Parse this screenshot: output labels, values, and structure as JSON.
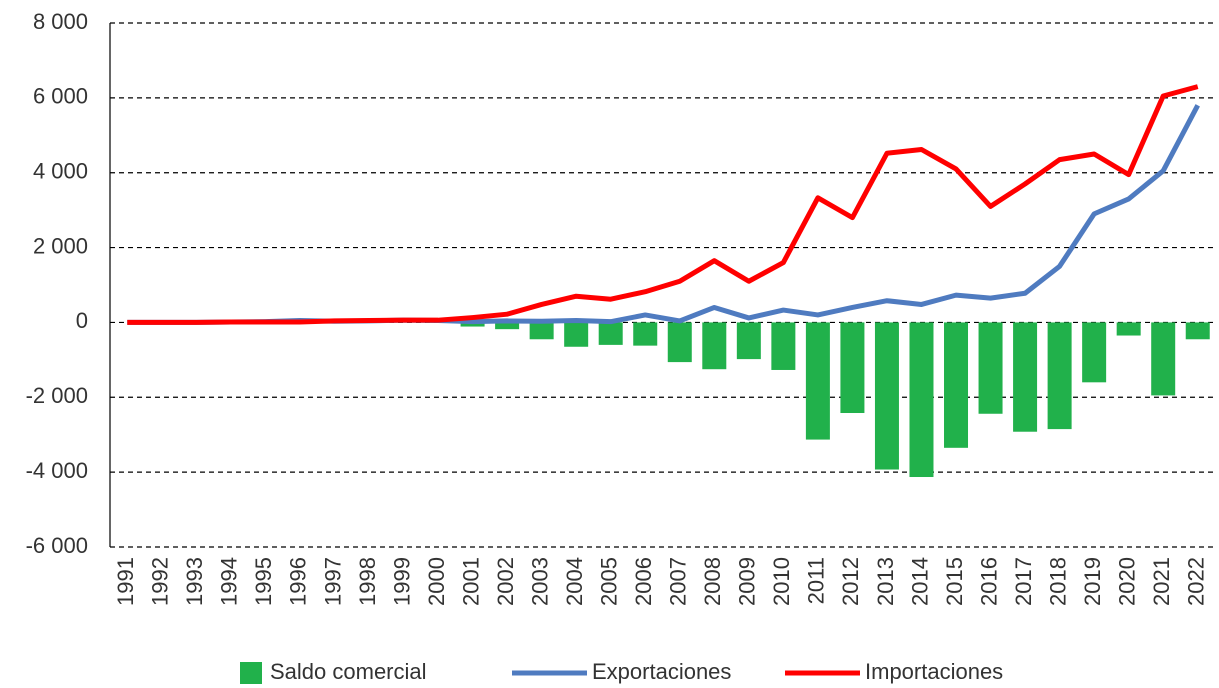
{
  "chart_data": {
    "type": "bar_line",
    "categories": [
      "1991",
      "1992",
      "1993",
      "1994",
      "1995",
      "1996",
      "1997",
      "1998",
      "1999",
      "2000",
      "2001",
      "2002",
      "2003",
      "2004",
      "2005",
      "2006",
      "2007",
      "2008",
      "2009",
      "2010",
      "2011",
      "2012",
      "2013",
      "2014",
      "2015",
      "2016",
      "2017",
      "2018",
      "2019",
      "2020",
      "2021",
      "2022"
    ],
    "series": [
      {
        "name": "Saldo comercial",
        "type": "bar",
        "color": "#21b14b",
        "values": [
          0,
          0,
          0,
          -10,
          -10,
          40,
          -10,
          -10,
          0,
          -10,
          -110,
          -180,
          -450,
          -650,
          -600,
          -620,
          -1060,
          -1250,
          -980,
          -1270,
          -3130,
          -2420,
          -3930,
          -4130,
          -3350,
          -2440,
          -2920,
          -2850,
          -1600,
          -350,
          -1950,
          -450
        ]
      },
      {
        "name": "Exportaciones",
        "type": "line",
        "color": "#4f7bc0",
        "values": [
          0,
          0,
          0,
          10,
          20,
          50,
          30,
          40,
          60,
          50,
          20,
          40,
          30,
          50,
          20,
          200,
          40,
          400,
          120,
          330,
          200,
          400,
          580,
          480,
          730,
          650,
          780,
          1500,
          2900,
          3300,
          4050,
          5800
        ]
      },
      {
        "name": "Importaciones",
        "type": "line",
        "color": "#ff0000",
        "values": [
          0,
          0,
          0,
          10,
          10,
          10,
          40,
          50,
          60,
          60,
          130,
          220,
          480,
          700,
          620,
          820,
          1100,
          1650,
          1100,
          1600,
          3330,
          2800,
          4520,
          4620,
          4100,
          3100,
          3700,
          4350,
          4500,
          3950,
          6050,
          6300
        ]
      }
    ],
    "ylim": [
      -6000,
      8000
    ],
    "yticks": [
      {
        "value": -6000,
        "label": "-6 000"
      },
      {
        "value": -4000,
        "label": "-4 000"
      },
      {
        "value": -2000,
        "label": "-2 000"
      },
      0,
      {
        "value": 2000,
        "label": "2 000"
      },
      {
        "value": 4000,
        "label": "4 000"
      },
      {
        "value": 6000,
        "label": "6 000"
      },
      {
        "value": 8000,
        "label": "8 000"
      }
    ],
    "grid": true,
    "legend": "bottom"
  }
}
